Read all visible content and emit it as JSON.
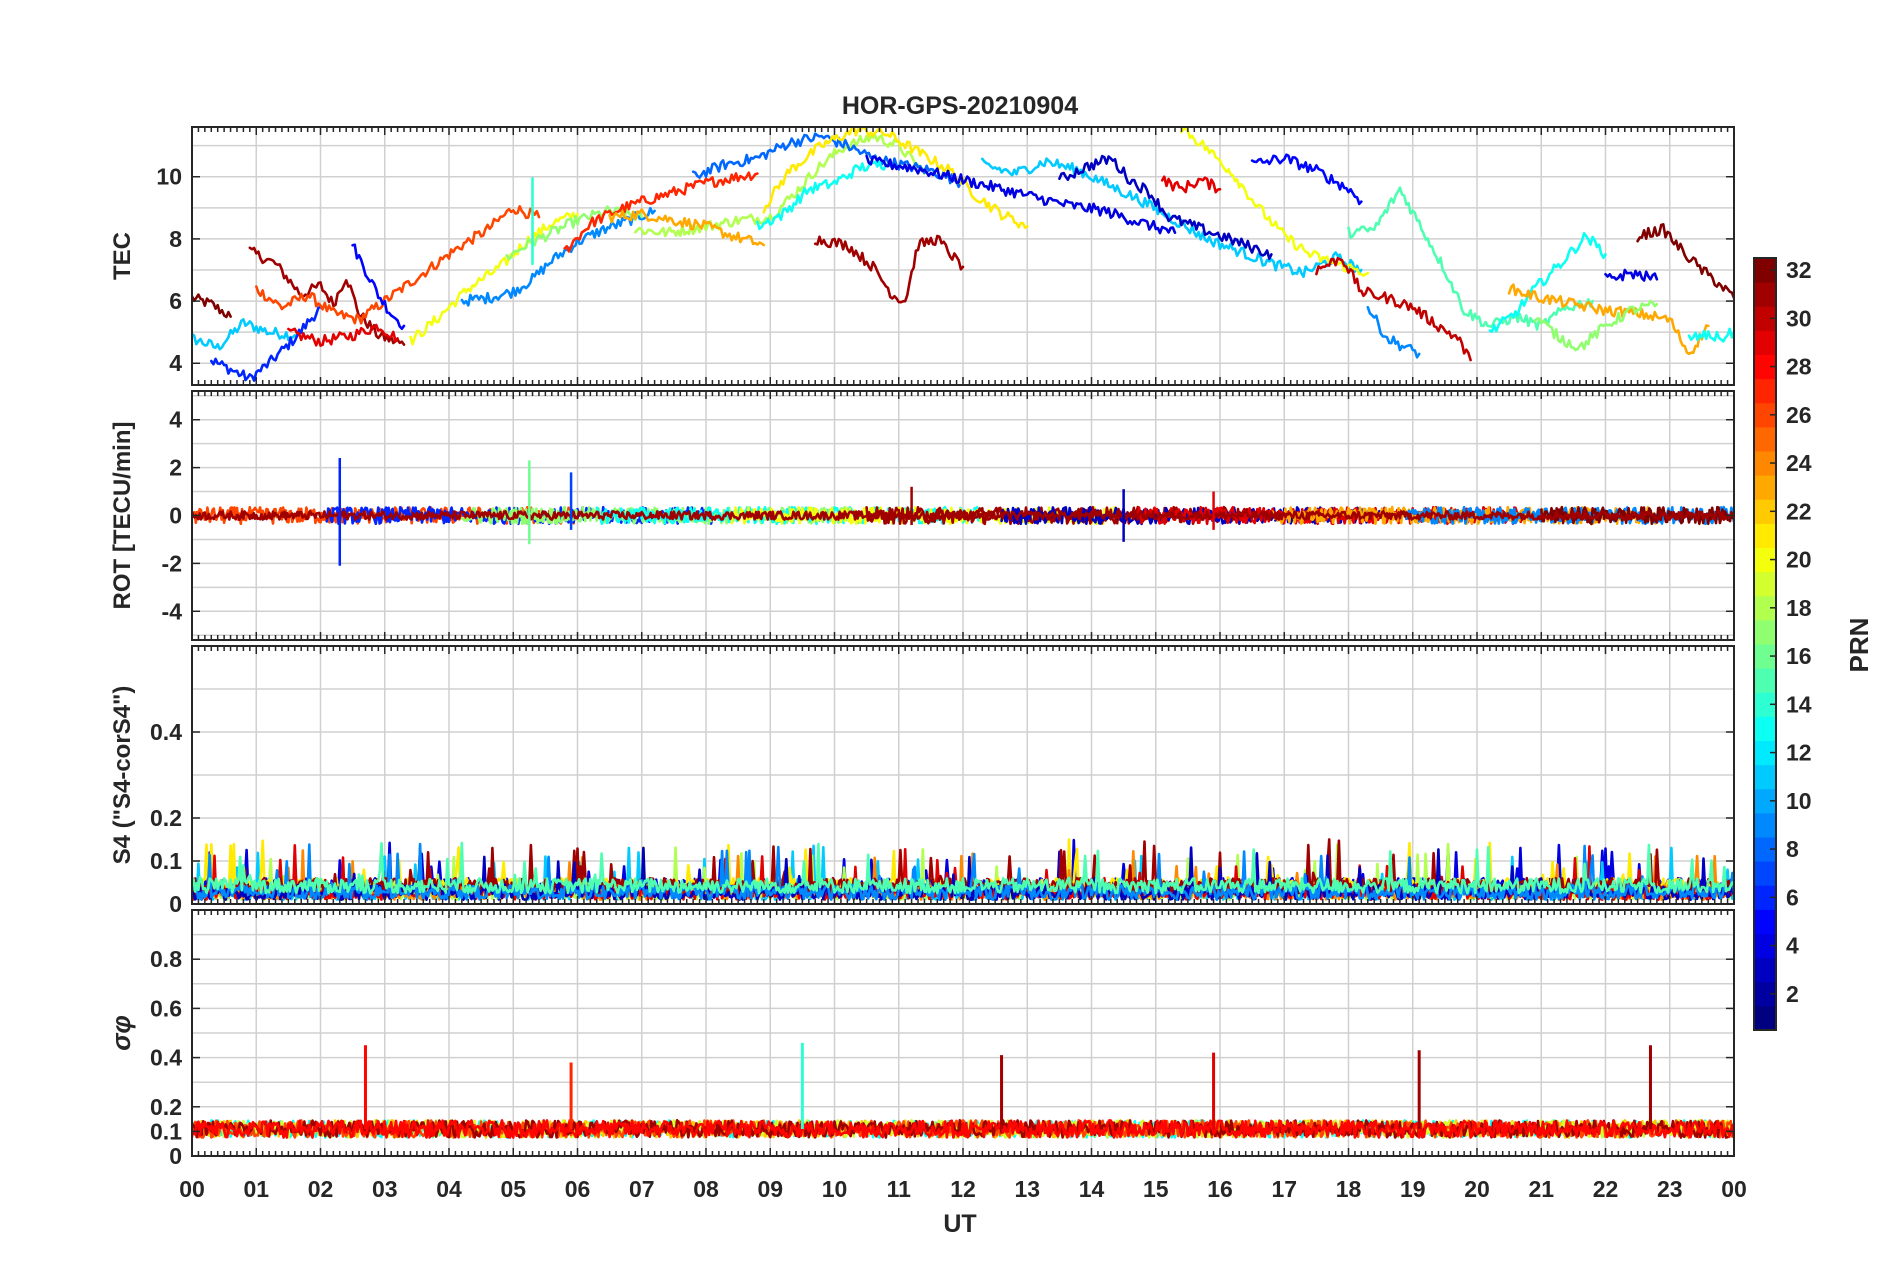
{
  "chart_data": {
    "type": "line",
    "title": "HOR-GPS-20210904",
    "xlabel": "UT",
    "x_tick_labels": [
      "00",
      "01",
      "02",
      "03",
      "04",
      "05",
      "06",
      "07",
      "08",
      "09",
      "10",
      "11",
      "12",
      "13",
      "14",
      "15",
      "16",
      "17",
      "18",
      "19",
      "20",
      "21",
      "22",
      "23",
      "00"
    ],
    "xlim_hours": [
      0,
      24
    ],
    "panels": [
      {
        "id": "tec",
        "ylabel": "TEC",
        "ylim": [
          3.3,
          11.6
        ],
        "ticks": [
          4,
          6,
          8,
          10
        ],
        "tick_labels": [
          "4",
          "6",
          "8",
          "10"
        ],
        "grid_step": 1
      },
      {
        "id": "rot",
        "ylabel": "ROT [TECU/min]",
        "ylim": [
          -5.2,
          5.2
        ],
        "ticks": [
          -4,
          -2,
          0,
          2,
          4
        ],
        "tick_labels": [
          "-4",
          "-2",
          "0",
          "2",
          "4"
        ],
        "grid_step": 1
      },
      {
        "id": "s4",
        "ylabel": "S4 (\"S4-corS4\")",
        "ylim": [
          0,
          0.6
        ],
        "ticks": [
          0,
          0.1,
          0.2,
          0.4
        ],
        "tick_labels": [
          "0",
          "0.1",
          "0.2",
          "0.4"
        ],
        "grid_step": 0.1
      },
      {
        "id": "sigma",
        "ylabel": "σφ",
        "ylim": [
          0,
          1.0
        ],
        "ticks": [
          0,
          0.1,
          0.2,
          0.4,
          0.6,
          0.8
        ],
        "tick_labels": [
          "0",
          "0.1",
          "0.2",
          "0.4",
          "0.6",
          "0.8"
        ],
        "grid_step": 0.1
      }
    ],
    "colorbar": {
      "label": "PRN",
      "range": [
        1,
        32
      ],
      "ticks": [
        2,
        4,
        6,
        8,
        10,
        12,
        14,
        16,
        18,
        20,
        22,
        24,
        26,
        28,
        30,
        32
      ],
      "tick_labels": [
        "2",
        "4",
        "6",
        "8",
        "10",
        "12",
        "14",
        "16",
        "18",
        "20",
        "22",
        "24",
        "26",
        "28",
        "30",
        "32"
      ],
      "colormap": "jet"
    },
    "tec_series": [
      {
        "prn": 32,
        "points": [
          [
            0,
            6.1
          ],
          [
            0.3,
            5.9
          ],
          [
            0.6,
            5.5
          ]
        ]
      },
      {
        "prn": 11,
        "points": [
          [
            0,
            4.8
          ],
          [
            0.4,
            4.5
          ],
          [
            0.8,
            5.3
          ],
          [
            1.2,
            5.0
          ],
          [
            1.6,
            4.9
          ]
        ]
      },
      {
        "prn": 6,
        "points": [
          [
            0.3,
            4.1
          ],
          [
            0.6,
            3.8
          ],
          [
            0.9,
            3.5
          ],
          [
            1.2,
            4.0
          ],
          [
            1.6,
            4.8
          ],
          [
            2.0,
            5.8
          ]
        ]
      },
      {
        "prn": 31,
        "points": [
          [
            0.9,
            7.6
          ],
          [
            1.3,
            7.2
          ],
          [
            1.7,
            6.2
          ],
          [
            2.0,
            6.5
          ],
          [
            2.2,
            5.9
          ],
          [
            2.4,
            6.8
          ],
          [
            2.6,
            5.6
          ],
          [
            2.9,
            4.9
          ],
          [
            3.3,
            4.6
          ]
        ]
      },
      {
        "prn": 26,
        "points": [
          [
            1.0,
            6.4
          ],
          [
            1.4,
            5.8
          ],
          [
            1.8,
            6.2
          ],
          [
            2.2,
            5.6
          ],
          [
            2.6,
            5.4
          ],
          [
            3.0,
            6.0
          ],
          [
            3.4,
            6.6
          ],
          [
            3.8,
            7.2
          ],
          [
            4.2,
            7.8
          ],
          [
            4.6,
            8.3
          ],
          [
            5.0,
            9.0
          ],
          [
            5.4,
            8.7
          ]
        ]
      },
      {
        "prn": 29,
        "points": [
          [
            1.5,
            5.0
          ],
          [
            2.0,
            4.7
          ],
          [
            2.5,
            4.9
          ],
          [
            2.9,
            5.2
          ],
          [
            3.2,
            4.8
          ]
        ]
      },
      {
        "prn": 5,
        "points": [
          [
            2.5,
            7.8
          ],
          [
            2.7,
            7.0
          ],
          [
            2.9,
            6.2
          ],
          [
            3.1,
            5.6
          ],
          [
            3.3,
            5.2
          ]
        ]
      },
      {
        "prn": 20,
        "points": [
          [
            3.4,
            4.7
          ],
          [
            3.8,
            5.4
          ],
          [
            4.3,
            6.4
          ],
          [
            4.8,
            7.1
          ],
          [
            5.2,
            7.9
          ],
          [
            5.6,
            8.5
          ],
          [
            6.0,
            8.8
          ]
        ]
      },
      {
        "prn": 9,
        "points": [
          [
            4.2,
            6.0
          ],
          [
            4.6,
            6.1
          ],
          [
            5.0,
            6.3
          ],
          [
            5.3,
            6.7
          ],
          [
            5.6,
            7.3
          ],
          [
            6.0,
            7.9
          ],
          [
            6.4,
            8.3
          ],
          [
            6.8,
            8.6
          ],
          [
            7.2,
            8.9
          ]
        ]
      },
      {
        "prn": 17,
        "points": [
          [
            4.9,
            7.4
          ],
          [
            5.2,
            7.8
          ],
          [
            5.6,
            8.2
          ],
          [
            6.0,
            8.6
          ],
          [
            6.5,
            8.9
          ],
          [
            7.0,
            8.7
          ]
        ]
      },
      {
        "prn": 14,
        "points": [
          [
            5.3,
            9.8
          ],
          [
            5.3,
            7.2
          ]
        ]
      },
      {
        "prn": 27,
        "points": [
          [
            5.8,
            7.6
          ],
          [
            6.2,
            8.5
          ],
          [
            6.6,
            8.9
          ],
          [
            7.0,
            9.2
          ],
          [
            7.5,
            9.5
          ],
          [
            8.0,
            9.8
          ],
          [
            8.5,
            10.0
          ],
          [
            8.8,
            10.1
          ]
        ]
      },
      {
        "prn": 18,
        "points": [
          [
            6.9,
            8.3
          ],
          [
            7.4,
            8.2
          ],
          [
            8.0,
            8.4
          ],
          [
            8.5,
            8.6
          ],
          [
            9.0,
            8.7
          ],
          [
            9.4,
            9.5
          ],
          [
            9.7,
            10.2
          ],
          [
            10.1,
            10.9
          ],
          [
            10.6,
            11.3
          ],
          [
            11.0,
            11.0
          ],
          [
            11.4,
            10.1
          ]
        ]
      },
      {
        "prn": 23,
        "points": [
          [
            6.5,
            8.7
          ],
          [
            7.0,
            8.8
          ],
          [
            7.5,
            8.6
          ],
          [
            8.0,
            8.4
          ],
          [
            8.4,
            8.1
          ],
          [
            8.9,
            7.8
          ]
        ]
      },
      {
        "prn": 8,
        "points": [
          [
            7.8,
            10.0
          ],
          [
            8.3,
            10.4
          ],
          [
            8.8,
            10.6
          ],
          [
            9.3,
            11.1
          ],
          [
            9.8,
            11.3
          ],
          [
            10.2,
            11.0
          ],
          [
            10.6,
            10.6
          ],
          [
            11.0,
            10.4
          ],
          [
            11.5,
            10.2
          ],
          [
            12.0,
            9.8
          ]
        ]
      },
      {
        "prn": 21,
        "points": [
          [
            8.9,
            9.0
          ],
          [
            9.3,
            10.2
          ],
          [
            9.8,
            11.0
          ],
          [
            10.3,
            11.5
          ],
          [
            10.8,
            11.4
          ],
          [
            11.3,
            10.8
          ],
          [
            11.8,
            10.2
          ],
          [
            12.2,
            9.4
          ],
          [
            12.6,
            8.8
          ],
          [
            13.0,
            8.4
          ]
        ]
      },
      {
        "prn": 13,
        "points": [
          [
            8.8,
            8.4
          ],
          [
            9.2,
            8.8
          ],
          [
            9.6,
            9.6
          ],
          [
            10.0,
            9.8
          ],
          [
            10.4,
            10.3
          ],
          [
            10.8,
            10.4
          ]
        ]
      },
      {
        "prn": 31,
        "points": [
          [
            9.7,
            8.0
          ],
          [
            10.2,
            7.8
          ],
          [
            10.6,
            7.1
          ],
          [
            10.9,
            6.2
          ],
          [
            11.1,
            6.0
          ],
          [
            11.3,
            7.8
          ],
          [
            11.6,
            8.0
          ],
          [
            11.9,
            7.3
          ],
          [
            12.0,
            7.1
          ]
        ]
      },
      {
        "prn": 4,
        "points": [
          [
            10.5,
            10.5
          ],
          [
            11.2,
            10.3
          ],
          [
            11.8,
            10.0
          ],
          [
            12.4,
            9.7
          ],
          [
            13.0,
            9.4
          ],
          [
            13.6,
            9.1
          ],
          [
            14.2,
            8.9
          ],
          [
            14.8,
            8.5
          ],
          [
            15.3,
            8.2
          ]
        ]
      },
      {
        "prn": 11,
        "points": [
          [
            12.3,
            10.4
          ],
          [
            12.8,
            10.1
          ],
          [
            13.3,
            10.5
          ],
          [
            13.8,
            10.2
          ],
          [
            14.3,
            9.7
          ],
          [
            14.8,
            9.2
          ],
          [
            15.3,
            8.6
          ],
          [
            15.8,
            8.0
          ],
          [
            16.3,
            7.6
          ],
          [
            16.8,
            7.2
          ],
          [
            17.3,
            6.9
          ],
          [
            17.8,
            7.4
          ],
          [
            18.2,
            7.0
          ]
        ]
      },
      {
        "prn": 3,
        "points": [
          [
            13.5,
            9.9
          ],
          [
            13.9,
            10.3
          ],
          [
            14.3,
            10.6
          ],
          [
            14.6,
            9.9
          ],
          [
            14.9,
            9.5
          ],
          [
            15.2,
            8.7
          ],
          [
            15.6,
            8.4
          ],
          [
            16.0,
            8.1
          ],
          [
            16.4,
            7.8
          ],
          [
            16.8,
            7.5
          ]
        ]
      },
      {
        "prn": 29,
        "points": [
          [
            15.1,
            9.9
          ],
          [
            15.4,
            9.6
          ],
          [
            15.7,
            9.9
          ],
          [
            16.0,
            9.6
          ]
        ]
      },
      {
        "prn": 20,
        "points": [
          [
            15.4,
            11.6
          ],
          [
            15.8,
            10.9
          ],
          [
            16.2,
            10.1
          ],
          [
            16.6,
            9.0
          ],
          [
            17.0,
            8.1
          ],
          [
            17.4,
            7.5
          ],
          [
            17.8,
            7.2
          ],
          [
            18.3,
            6.9
          ]
        ]
      },
      {
        "prn": 5,
        "points": [
          [
            16.5,
            10.4
          ],
          [
            17.0,
            10.6
          ],
          [
            17.5,
            10.2
          ],
          [
            18.0,
            9.6
          ],
          [
            18.2,
            9.2
          ]
        ]
      },
      {
        "prn": 30,
        "points": [
          [
            17.5,
            7.0
          ],
          [
            17.9,
            7.4
          ],
          [
            18.2,
            6.3
          ],
          [
            18.6,
            6.1
          ],
          [
            19.0,
            5.8
          ],
          [
            19.4,
            5.2
          ],
          [
            19.7,
            4.8
          ],
          [
            19.9,
            4.1
          ]
        ]
      },
      {
        "prn": 15,
        "points": [
          [
            18.0,
            8.2
          ],
          [
            18.4,
            8.3
          ],
          [
            18.8,
            9.6
          ],
          [
            19.1,
            8.5
          ],
          [
            19.5,
            7.0
          ],
          [
            19.8,
            5.7
          ],
          [
            20.2,
            5.2
          ],
          [
            20.6,
            5.5
          ],
          [
            21.0,
            5.2
          ],
          [
            21.4,
            5.8
          ],
          [
            21.8,
            6.0
          ]
        ]
      },
      {
        "prn": 9,
        "points": [
          [
            18.3,
            5.8
          ],
          [
            18.6,
            4.8
          ],
          [
            18.9,
            4.5
          ],
          [
            19.1,
            4.3
          ]
        ]
      },
      {
        "prn": 13,
        "points": [
          [
            20.2,
            5.0
          ],
          [
            20.6,
            5.6
          ],
          [
            20.9,
            6.4
          ],
          [
            21.3,
            7.2
          ],
          [
            21.7,
            8.1
          ],
          [
            22.0,
            7.5
          ]
        ]
      },
      {
        "prn": 23,
        "points": [
          [
            20.5,
            6.4
          ],
          [
            21.0,
            6.1
          ],
          [
            21.5,
            5.9
          ],
          [
            22.0,
            5.7
          ],
          [
            22.5,
            5.6
          ],
          [
            23.0,
            5.4
          ],
          [
            23.3,
            4.3
          ],
          [
            23.6,
            5.2
          ]
        ]
      },
      {
        "prn": 17,
        "points": [
          [
            20.9,
            5.5
          ],
          [
            21.3,
            4.8
          ],
          [
            21.6,
            4.5
          ],
          [
            22.0,
            5.2
          ],
          [
            22.4,
            5.7
          ],
          [
            22.8,
            5.9
          ]
        ]
      },
      {
        "prn": 4,
        "points": [
          [
            22.0,
            6.7
          ],
          [
            22.4,
            6.9
          ],
          [
            22.8,
            6.7
          ]
        ]
      },
      {
        "prn": 32,
        "points": [
          [
            22.5,
            8.1
          ],
          [
            22.9,
            8.3
          ],
          [
            23.2,
            7.6
          ],
          [
            23.5,
            7.0
          ],
          [
            23.8,
            6.5
          ],
          [
            24.0,
            6.1
          ]
        ]
      },
      {
        "prn": 13,
        "points": [
          [
            23.3,
            4.8
          ],
          [
            23.6,
            4.9
          ],
          [
            23.8,
            4.8
          ],
          [
            24.0,
            5.0
          ]
        ]
      }
    ],
    "rot_spikes": [
      {
        "prn": 6,
        "hour": 2.3,
        "max": 2.4,
        "min": -2.1
      },
      {
        "prn": 16,
        "hour": 5.25,
        "max": 2.3,
        "min": -1.2
      },
      {
        "prn": 7,
        "hour": 5.9,
        "max": 1.8,
        "min": -0.6
      },
      {
        "prn": 31,
        "hour": 11.2,
        "max": 1.2,
        "min": -0.4
      },
      {
        "prn": 3,
        "hour": 14.5,
        "max": 1.1,
        "min": -1.1
      },
      {
        "prn": 29,
        "hour": 15.9,
        "max": 1.0,
        "min": -0.6
      }
    ],
    "sigma_spikes": [
      {
        "prn": 28,
        "hour": 2.7,
        "value": 0.45
      },
      {
        "prn": 27,
        "hour": 5.9,
        "value": 0.38
      },
      {
        "prn": 14,
        "hour": 9.5,
        "value": 0.46
      },
      {
        "prn": 31,
        "hour": 12.6,
        "value": 0.41
      },
      {
        "prn": 29,
        "hour": 15.9,
        "value": 0.42
      },
      {
        "prn": 31,
        "hour": 19.1,
        "value": 0.43
      },
      {
        "prn": 31,
        "hour": 22.7,
        "value": 0.45
      }
    ]
  }
}
